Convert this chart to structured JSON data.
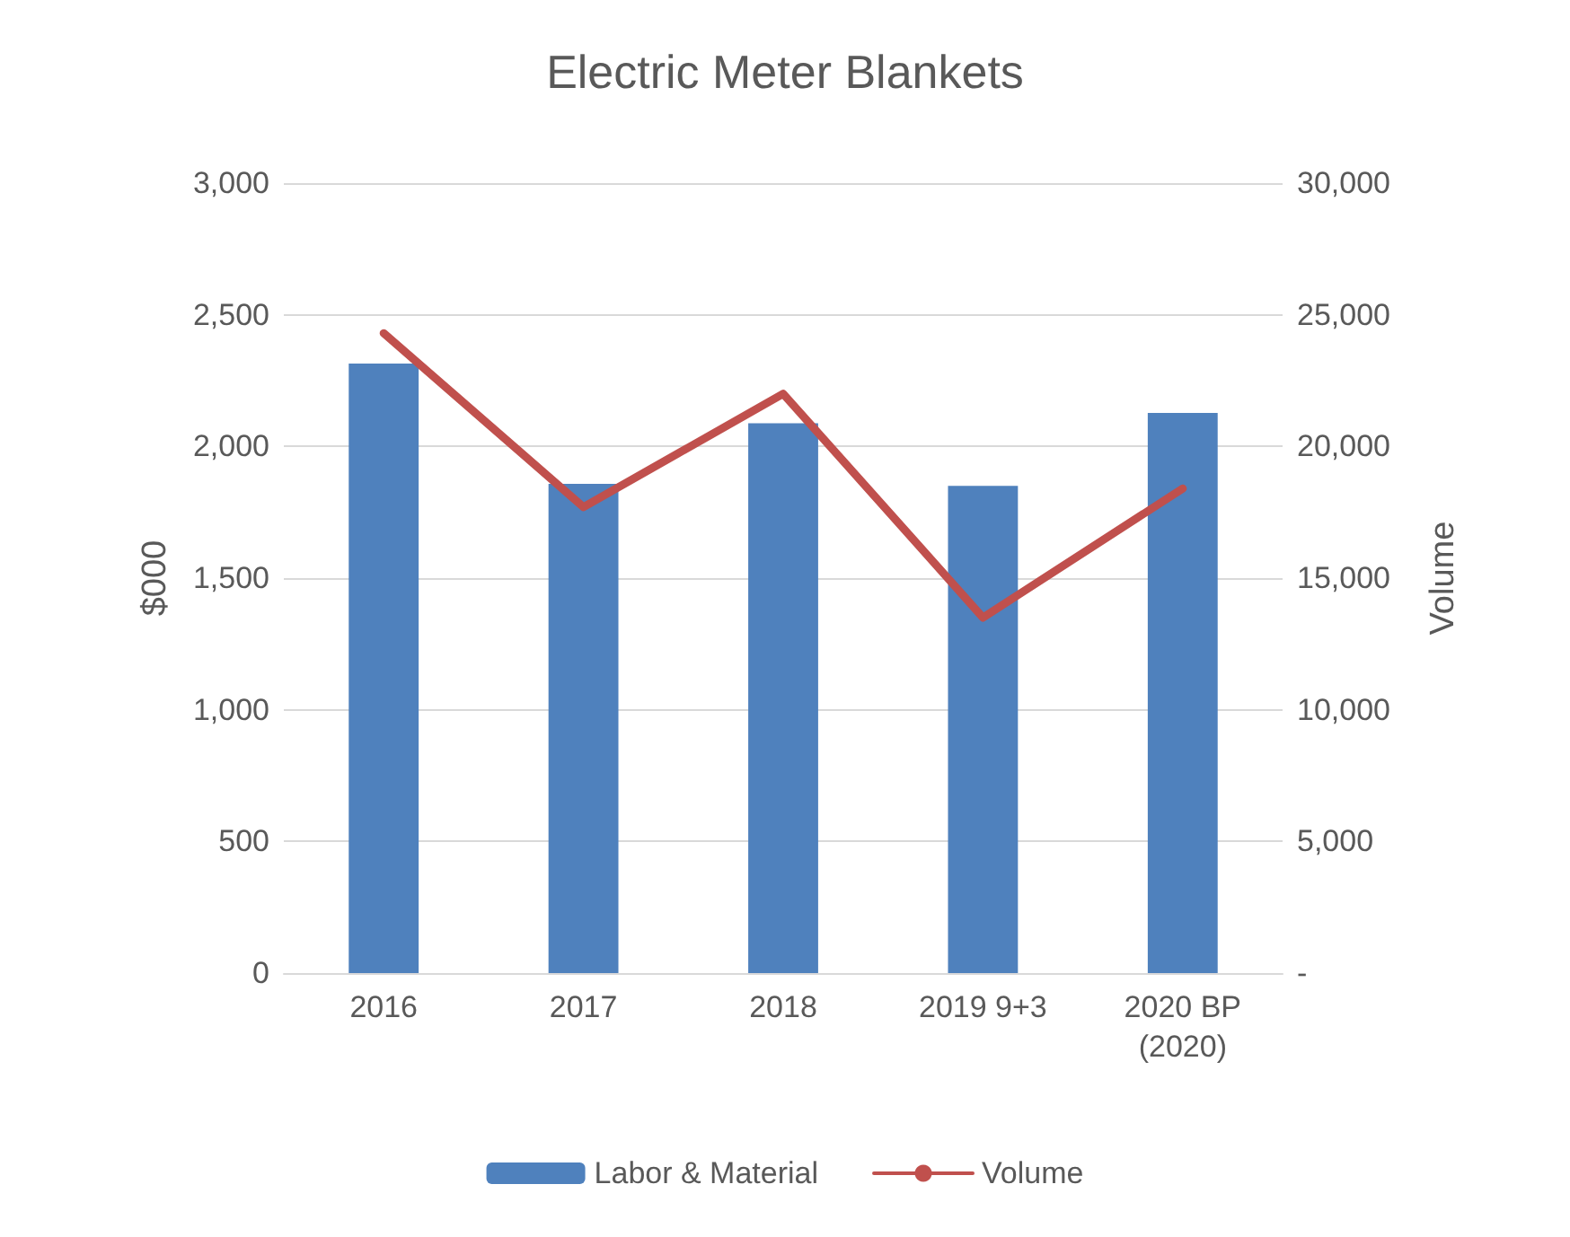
{
  "chart_data": {
    "type": "bar",
    "title": "Electric Meter Blankets",
    "ylabel": "$000",
    "y2label": "Volume",
    "categories": [
      "2016",
      "2017",
      "2018",
      "2019 9+3",
      "2020 BP\n(2020)"
    ],
    "series": [
      {
        "name": "Labor & Material",
        "color": "#4f81bd",
        "values": [
          2315,
          1858,
          2088,
          1850,
          2127
        ]
      },
      {
        "name": "Volume",
        "type": "line",
        "axis": "y2",
        "color": "#c0504d",
        "values": [
          24300,
          17700,
          22000,
          13500,
          18400
        ]
      }
    ],
    "ylim": [
      0,
      3000
    ],
    "yticks": [
      {
        "value": 0,
        "label": "0"
      },
      {
        "value": 500,
        "label": "500"
      },
      {
        "value": 1000,
        "label": "1,000"
      },
      {
        "value": 1500,
        "label": "1,500"
      },
      {
        "value": 2000,
        "label": "2,000"
      },
      {
        "value": 2500,
        "label": "2,500"
      },
      {
        "value": 3000,
        "label": "3,000"
      }
    ],
    "y2lim": [
      0,
      30000
    ],
    "y2ticks": [
      {
        "value": 0,
        "label": "-"
      },
      {
        "value": 5000,
        "label": "5,000"
      },
      {
        "value": 10000,
        "label": "10,000"
      },
      {
        "value": 15000,
        "label": "15,000"
      },
      {
        "value": 20000,
        "label": "20,000"
      },
      {
        "value": 25000,
        "label": "25,000"
      },
      {
        "value": 30000,
        "label": "30,000"
      }
    ],
    "grid": "y",
    "legend": "bottom",
    "marker": "none",
    "line_style": "solid"
  }
}
